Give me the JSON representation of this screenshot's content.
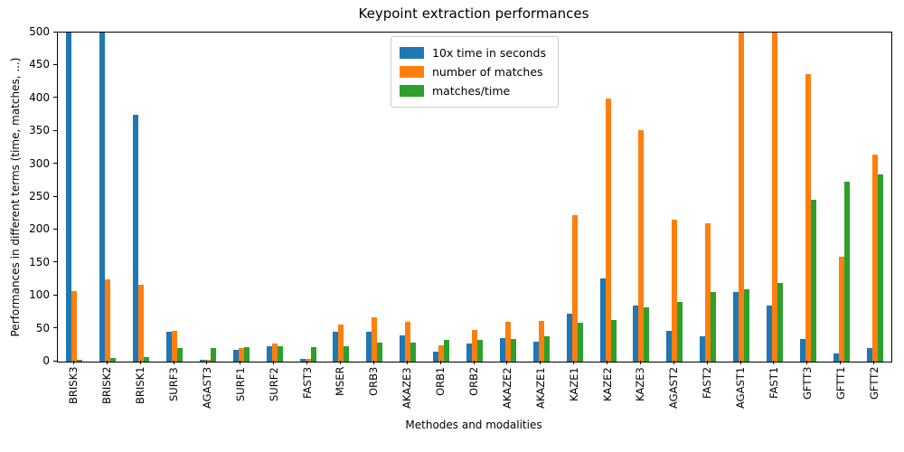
{
  "chart": {
    "title": "Keypoint extraction performances",
    "xlabel": "Methodes and modalities",
    "ylabel": "Performances in different terms (time, matches, ...)"
  },
  "chart_data": {
    "type": "bar",
    "title": "Keypoint extraction performances",
    "xlabel": "Methodes and modalities",
    "ylabel": "Performances in different terms (time, matches, ...)",
    "ylim": [
      0,
      500
    ],
    "ytick_step": 50,
    "grid": false,
    "legend_position": "upper center-left inside plot",
    "categories": [
      "BRISK3",
      "BRISK2",
      "BRISK1",
      "SURF3",
      "AGAST3",
      "SURF1",
      "SURF2",
      "FAST3",
      "MSER",
      "ORB3",
      "AKAZE3",
      "ORB1",
      "ORB2",
      "AKAZE2",
      "AKAZE1",
      "KAZE1",
      "KAZE2",
      "KAZE3",
      "AGAST2",
      "FAST2",
      "AGAST1",
      "FAST1",
      "GFTT3",
      "GFTT1",
      "GFTT2"
    ],
    "series": [
      {
        "name": "10x time in seconds",
        "color": "#1f77b4",
        "values": [
          500,
          500,
          375,
          46,
          3,
          18,
          24,
          4,
          46,
          46,
          40,
          15,
          28,
          36,
          30,
          73,
          127,
          85,
          47,
          38,
          106,
          85,
          34,
          12,
          20
        ]
      },
      {
        "name": "number of matches",
        "color": "#ff7f0e",
        "values": [
          107,
          125,
          117,
          47,
          3,
          20,
          27,
          4,
          57,
          67,
          60,
          25,
          48,
          60,
          62,
          223,
          400,
          352,
          216,
          210,
          500,
          500,
          437,
          160,
          315
        ]
      },
      {
        "name": "matches/time",
        "color": "#2ca02c",
        "values": [
          3,
          5,
          7,
          20,
          20,
          22,
          23,
          22,
          24,
          29,
          29,
          33,
          33,
          35,
          38,
          59,
          63,
          83,
          90,
          106,
          110,
          119,
          246,
          274,
          285
        ]
      }
    ]
  }
}
